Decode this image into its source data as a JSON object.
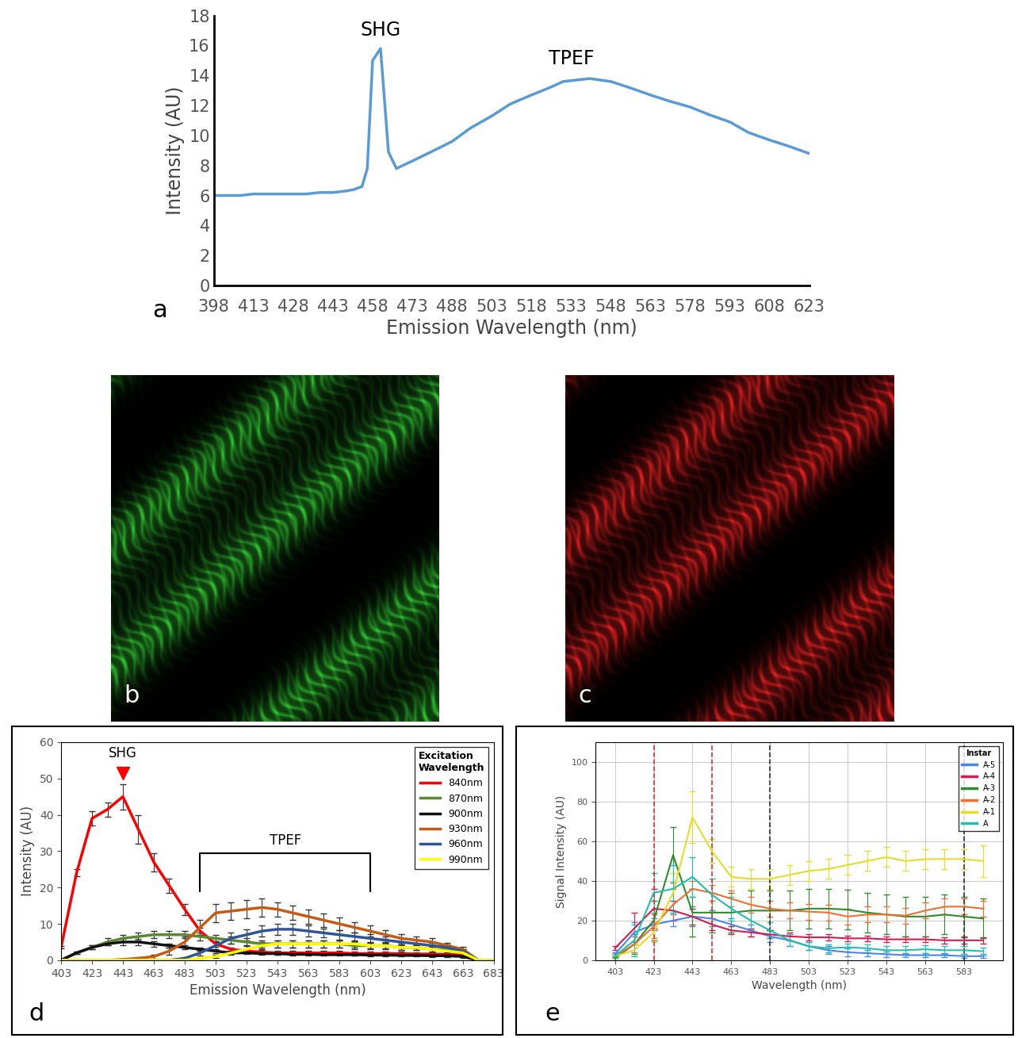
{
  "chart_data": [
    {
      "label": "a",
      "type": "line",
      "x_label": "Emission Wavelength (nm)",
      "y_label": "Intensity (AU)",
      "x": [
        398,
        408,
        413,
        428,
        433,
        438,
        443,
        448,
        451,
        454,
        456,
        458,
        461,
        464,
        467,
        473,
        480,
        488,
        495,
        503,
        510,
        518,
        525,
        530,
        535,
        540,
        548,
        555,
        563,
        570,
        578,
        585,
        593,
        600,
        608,
        615,
        623
      ],
      "series": [
        {
          "name": "Intensity",
          "color": "#5b9bd5",
          "values": [
            6,
            6,
            6.1,
            6.1,
            6.1,
            6.2,
            6.2,
            6.3,
            6.4,
            6.6,
            7.8,
            15,
            15.8,
            8.9,
            7.8,
            8.3,
            8.9,
            9.6,
            10.5,
            11.3,
            12.1,
            12.7,
            13.2,
            13.6,
            13.7,
            13.8,
            13.6,
            13.2,
            12.7,
            12.3,
            11.9,
            11.4,
            10.9,
            10.2,
            9.7,
            9.3,
            8.8
          ]
        }
      ],
      "xlim": [
        398,
        623
      ],
      "xticks": [
        398,
        413,
        428,
        443,
        458,
        473,
        488,
        503,
        518,
        533,
        548,
        563,
        578,
        593,
        608,
        623
      ],
      "ylim": [
        0,
        18
      ],
      "yticks": [
        0,
        2,
        4,
        6,
        8,
        10,
        12,
        14,
        16,
        18
      ],
      "grid": false,
      "annotations": [
        {
          "text": "SHG",
          "x": 461,
          "y": 16.4
        },
        {
          "text": "TPEF",
          "x": 533,
          "y": 14.5
        }
      ]
    },
    {
      "label": "b",
      "type": "image",
      "color": "#33cc33"
    },
    {
      "label": "c",
      "type": "image",
      "color": "#ee2222"
    },
    {
      "label": "d",
      "type": "line",
      "x_label": "Emission Wavelength (nm)",
      "y_label": "Intensity (AU)",
      "legend_title": "Excitation\nWavelength",
      "legend": "upper right",
      "x": [
        403,
        413,
        423,
        433,
        443,
        453,
        463,
        473,
        483,
        493,
        503,
        513,
        523,
        533,
        543,
        553,
        563,
        573,
        583,
        593,
        603,
        613,
        623,
        633,
        643,
        653,
        663,
        673,
        683
      ],
      "series": [
        {
          "name": "840nm",
          "color": "#ff0000",
          "values": [
            3.5,
            24,
            39,
            41.5,
            45,
            36,
            27,
            20.5,
            14,
            8,
            4.5,
            3,
            2.5,
            2.2,
            2,
            2,
            2,
            2,
            2,
            1.8,
            1.8,
            1.8,
            1.8,
            1.7,
            1.7,
            1.6,
            1.5,
            0,
            0
          ],
          "errors": [
            0.3,
            1,
            2,
            2,
            3.5,
            4,
            2.5,
            2,
            1.5,
            1,
            0.8,
            0.5,
            0.5,
            0.5,
            0.5,
            0.5,
            0.5,
            0.5,
            0.5,
            0.5,
            0.5,
            0.5,
            0.5,
            0.5,
            0.5,
            0.5,
            0.5,
            0,
            0
          ]
        },
        {
          "name": "870nm",
          "color": "#5a8a2e",
          "values": [
            0,
            2,
            3.5,
            5,
            6,
            6.5,
            7,
            7,
            7,
            6.5,
            6,
            5.5,
            5,
            4.5,
            4.5,
            4.5,
            4.5,
            4.5,
            4.5,
            4,
            4,
            4,
            3.5,
            3.5,
            3,
            3,
            2.5,
            0,
            0
          ],
          "errors": [
            0,
            0.3,
            0.5,
            1,
            1,
            1,
            1,
            1,
            1,
            1,
            1,
            1,
            1,
            1,
            1,
            1,
            1,
            1,
            1,
            1,
            1,
            1,
            0.8,
            0.8,
            0.8,
            0.8,
            0.5,
            0,
            0
          ]
        },
        {
          "name": "900nm",
          "color": "#111111",
          "values": [
            0,
            2,
            3.5,
            4.5,
            5,
            5,
            4.5,
            4,
            3.5,
            3,
            2.5,
            2,
            2,
            1.8,
            1.8,
            1.6,
            1.6,
            1.5,
            1.5,
            1.5,
            1.4,
            1.4,
            1.3,
            1.3,
            1.2,
            1.2,
            1,
            0,
            0
          ],
          "errors": [
            0,
            0.3,
            0.5,
            0.5,
            0.8,
            0.8,
            0.8,
            0.6,
            0.5,
            0.5,
            0.5,
            0.4,
            0.4,
            0.3,
            0.3,
            0.3,
            0.3,
            0.3,
            0.3,
            0.3,
            0.3,
            0.3,
            0.3,
            0.3,
            0.3,
            0.3,
            0.3,
            0,
            0
          ]
        },
        {
          "name": "930nm",
          "color": "#c55a11",
          "values": [
            0,
            0,
            0,
            0,
            0.2,
            0.5,
            1,
            2.5,
            5,
            9,
            13,
            13.5,
            14,
            14.5,
            14,
            13,
            12,
            11,
            10,
            9,
            8,
            7,
            6,
            5.5,
            5,
            4,
            3,
            0,
            0
          ],
          "errors": [
            0,
            0,
            0,
            0,
            0.2,
            0.3,
            0.5,
            1,
            1.5,
            2,
            2.5,
            2.5,
            2.5,
            2.5,
            2,
            2,
            2,
            1.8,
            1.8,
            1.5,
            1.5,
            1.2,
            1.2,
            1,
            1,
            0.8,
            0.6,
            0,
            0
          ]
        },
        {
          "name": "960nm",
          "color": "#2f5597",
          "values": [
            0,
            0,
            0,
            0,
            0,
            0,
            0,
            0,
            0.5,
            2,
            4,
            6,
            7,
            8,
            8.5,
            8.5,
            8,
            7.5,
            7,
            6.5,
            6,
            5.5,
            5,
            4.5,
            4,
            3.5,
            2.5,
            0,
            0
          ],
          "errors": [
            0,
            0,
            0,
            0,
            0,
            0,
            0,
            0,
            0.3,
            0.8,
            1.2,
            1.5,
            1.5,
            1.5,
            1.5,
            1.5,
            1.5,
            1.3,
            1.3,
            1.2,
            1.2,
            1,
            1,
            1,
            0.8,
            0.8,
            0.5,
            0,
            0
          ]
        },
        {
          "name": "990nm",
          "color": "#ffff00",
          "values": [
            0,
            0,
            0,
            0,
            0,
            0,
            0,
            0,
            0,
            0.5,
            1,
            2,
            3,
            4,
            4.5,
            4.5,
            4.5,
            4.5,
            4.5,
            4.5,
            4,
            4,
            3.5,
            3.5,
            3,
            2.5,
            2,
            0,
            0
          ],
          "errors": [
            0,
            0,
            0,
            0,
            0,
            0,
            0,
            0,
            0,
            0.2,
            0.4,
            0.6,
            0.8,
            1,
            1,
            1,
            1,
            1,
            1,
            1,
            0.8,
            0.8,
            0.8,
            0.6,
            0.6,
            0.5,
            0.4,
            0,
            0
          ]
        }
      ],
      "xlim": [
        403,
        683
      ],
      "xticks": [
        403,
        423,
        443,
        463,
        483,
        503,
        523,
        543,
        563,
        583,
        603,
        623,
        643,
        663,
        683
      ],
      "ylim": [
        0,
        60
      ],
      "yticks": [
        0,
        10,
        20,
        30,
        40,
        50,
        60
      ],
      "grid": false,
      "annotations": [
        {
          "text": "SHG",
          "x": 443,
          "y": 55,
          "point": [
            443,
            51.5
          ],
          "color": "#ff0000",
          "marker": "v"
        },
        {
          "text": "TPEF",
          "x": 548,
          "y": 31,
          "bracket": {
            "x": [
              493,
              603
            ],
            "y": [
              19,
              29.5
            ]
          }
        }
      ]
    },
    {
      "label": "e",
      "type": "line",
      "x_label": "Wavelength (nm)",
      "y_label": "Signal Intensity (AU)",
      "legend_title": "Instar",
      "legend": "upper right",
      "x": [
        403,
        413,
        423,
        433,
        443,
        453,
        463,
        473,
        483,
        493,
        503,
        513,
        523,
        533,
        543,
        553,
        563,
        573,
        583,
        593
      ],
      "series": [
        {
          "name": "A-5",
          "color": "#4a86e8",
          "values": [
            3,
            14,
            18,
            20,
            22,
            21,
            18,
            15,
            12,
            10,
            7,
            5,
            4,
            3.5,
            3,
            2.5,
            2.5,
            2.5,
            2,
            2
          ],
          "errors": [
            1,
            5,
            3,
            3,
            5,
            4,
            3,
            3,
            3,
            3,
            2,
            2,
            2,
            1.5,
            1.5,
            1,
            1,
            1,
            1,
            1
          ]
        },
        {
          "name": "A-4",
          "color": "#d81b50",
          "values": [
            6,
            16,
            26,
            25,
            22,
            18,
            15,
            14,
            13,
            12,
            11.5,
            11.5,
            11,
            11,
            10.5,
            10.5,
            10.5,
            10,
            10,
            10
          ],
          "errors": [
            1,
            8,
            10,
            5,
            4,
            3,
            2,
            2,
            2,
            2,
            1.5,
            1.5,
            1.5,
            1.5,
            1.5,
            1.5,
            1.5,
            1.5,
            1.5,
            1.5
          ]
        },
        {
          "name": "A-3",
          "color": "#2e8b2e",
          "values": [
            1,
            8,
            20,
            53,
            24,
            24,
            24,
            25,
            25,
            25,
            26,
            26,
            25.5,
            24,
            23,
            22,
            22,
            23,
            22,
            21
          ],
          "errors": [
            1,
            5,
            10,
            14,
            12,
            10,
            10,
            10,
            10,
            10,
            10,
            10,
            10,
            10,
            10,
            10,
            10,
            10,
            10,
            10
          ]
        },
        {
          "name": "A-2",
          "color": "#f07030",
          "values": [
            2,
            8,
            17,
            28,
            36,
            34,
            31,
            28,
            26,
            25,
            24.5,
            24,
            22,
            23,
            23,
            22.5,
            25,
            27,
            27,
            26
          ],
          "errors": [
            1,
            4,
            6,
            8,
            4,
            4,
            4,
            4,
            4,
            4,
            4,
            4,
            4,
            4,
            4,
            4,
            4,
            4,
            4,
            4
          ]
        },
        {
          "name": "A-1",
          "color": "#e6dc2a",
          "values": [
            2,
            5,
            14,
            34,
            72,
            55,
            42,
            41,
            41,
            43,
            45,
            46,
            48,
            50,
            52,
            50,
            51,
            51,
            51,
            50
          ],
          "errors": [
            1,
            3,
            5,
            10,
            13,
            6,
            5,
            5,
            5,
            5,
            5,
            5,
            5,
            5,
            5,
            5,
            5,
            5,
            5,
            8
          ]
        },
        {
          "name": "A",
          "color": "#20c0b0",
          "values": [
            2,
            10,
            34,
            36,
            42,
            33,
            26,
            20,
            15,
            10,
            7,
            6,
            6.5,
            6,
            5,
            5,
            5.5,
            5,
            5,
            4.5
          ],
          "errors": [
            1,
            8,
            10,
            12,
            10,
            8,
            6,
            5,
            4,
            3,
            2,
            2,
            2,
            2,
            2,
            2,
            2,
            2,
            2,
            2
          ]
        }
      ],
      "xlim": [
        393,
        603
      ],
      "xticks": [
        403,
        423,
        443,
        463,
        483,
        503,
        523,
        543,
        563,
        583
      ],
      "ylim": [
        0,
        110
      ],
      "yticks": [
        0,
        20,
        40,
        60,
        80,
        100
      ],
      "grid": true,
      "vlines": [
        {
          "x": 423,
          "color": "#e03030"
        },
        {
          "x": 453,
          "color": "#e03030"
        },
        {
          "x": 483,
          "color": "#333333"
        },
        {
          "x": 583,
          "color": "#333333"
        }
      ]
    }
  ]
}
